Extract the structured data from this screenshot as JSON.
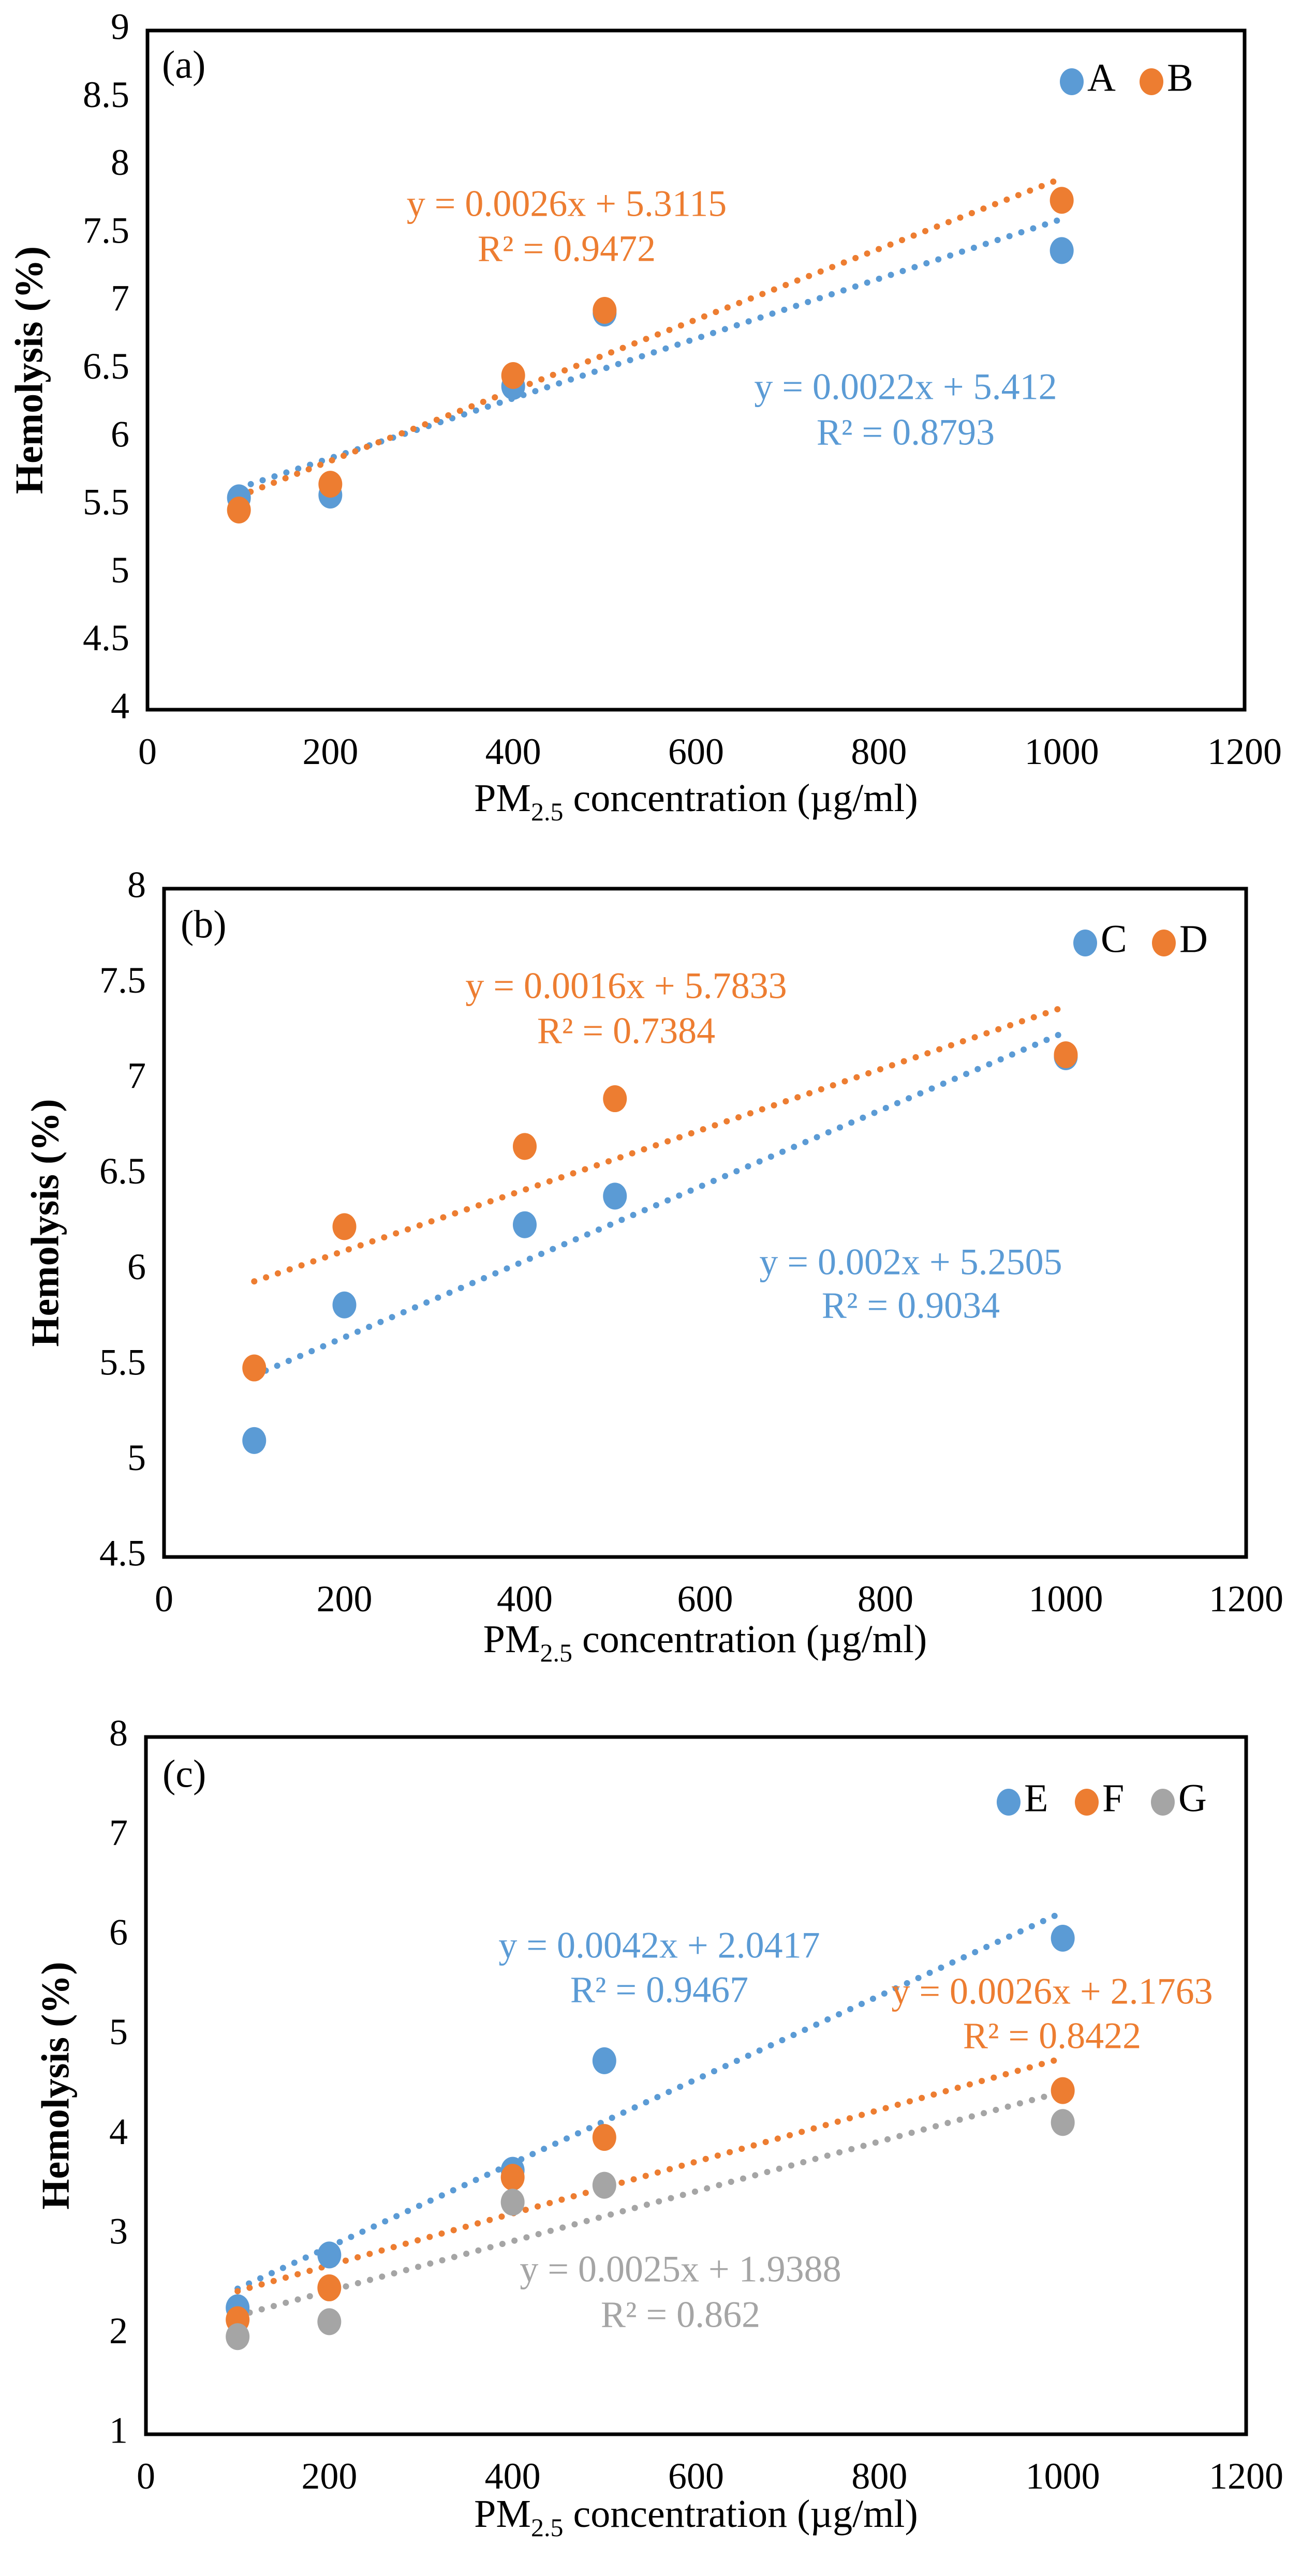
{
  "colors": {
    "blue": "#5B9BD5",
    "orange": "#ED7D31",
    "gray": "#A5A5A5",
    "axis": "#000000"
  },
  "chart_data": [
    {
      "type": "scatter",
      "panel_label": "(a)",
      "xlabel_main": "PM",
      "xlabel_sub": "2.5",
      "xlabel_rest": " concentration (µg/ml)",
      "ylabel": "Hemolysis  (%)",
      "xlim": [
        0,
        1200
      ],
      "ylim": [
        4,
        9
      ],
      "xticks": [
        "0",
        "200",
        "400",
        "600",
        "800",
        "1000",
        "1200"
      ],
      "yticks": [
        "4",
        "4.5",
        "5",
        "5.5",
        "6",
        "6.5",
        "7",
        "7.5",
        "8",
        "8.5",
        "9"
      ],
      "legend_position": "top-right",
      "series": [
        {
          "name": "A",
          "color": "blue",
          "x": [
            100,
            200,
            400,
            500,
            1000
          ],
          "y": [
            5.56,
            5.58,
            6.38,
            6.92,
            7.38
          ],
          "trend": {
            "slope": 0.0022,
            "intercept": 5.412,
            "eq": "y = 0.0022x + 5.412",
            "r2": "R² = 0.8793"
          }
        },
        {
          "name": "B",
          "color": "orange",
          "x": [
            100,
            200,
            400,
            500,
            1000
          ],
          "y": [
            5.47,
            5.66,
            6.46,
            6.94,
            7.75
          ],
          "trend": {
            "slope": 0.0026,
            "intercept": 5.3115,
            "eq": "y = 0.0026x + 5.3115",
            "r2": "R² = 0.9472"
          }
        }
      ]
    },
    {
      "type": "scatter",
      "panel_label": "(b)",
      "xlabel_main": "PM",
      "xlabel_sub": "2.5",
      "xlabel_rest": " concentration (µg/ml)",
      "ylabel": "Hemolysis  (%)",
      "xlim": [
        0,
        1200
      ],
      "ylim": [
        4.5,
        8
      ],
      "xticks": [
        "0",
        "200",
        "400",
        "600",
        "800",
        "1000",
        "1200"
      ],
      "yticks": [
        "4.5",
        "5",
        "5.5",
        "6",
        "6.5",
        "7",
        "7.5",
        "8"
      ],
      "legend_position": "top-right",
      "series": [
        {
          "name": "C",
          "color": "blue",
          "x": [
            100,
            200,
            400,
            500,
            1000
          ],
          "y": [
            5.11,
            5.82,
            6.24,
            6.39,
            7.12
          ],
          "trend": {
            "slope": 0.002,
            "intercept": 5.2505,
            "eq": "y = 0.002x + 5.2505",
            "r2": "R² = 0.9034"
          }
        },
        {
          "name": "D",
          "color": "orange",
          "x": [
            100,
            200,
            400,
            500,
            1000
          ],
          "y": [
            5.49,
            6.23,
            6.65,
            6.9,
            7.13
          ],
          "trend": {
            "slope": 0.0016,
            "intercept": 5.7833,
            "eq": "y = 0.0016x + 5.7833",
            "r2": "R² = 0.7384"
          }
        }
      ]
    },
    {
      "type": "scatter",
      "panel_label": "(c)",
      "xlabel_main": "PM",
      "xlabel_sub": "2.5",
      "xlabel_rest": " concentration (µg/ml)",
      "ylabel": "Hemolysis  (%)",
      "xlim": [
        0,
        1200
      ],
      "ylim": [
        1,
        8
      ],
      "xticks": [
        "0",
        "200",
        "400",
        "600",
        "800",
        "1000",
        "1200"
      ],
      "yticks": [
        "1",
        "2",
        "3",
        "4",
        "5",
        "6",
        "7",
        "8"
      ],
      "legend_position": "top-right",
      "series": [
        {
          "name": "E",
          "color": "blue",
          "x": [
            100,
            200,
            400,
            500,
            1000
          ],
          "y": [
            2.27,
            2.8,
            3.65,
            4.75,
            5.98
          ],
          "trend": {
            "slope": 0.0042,
            "intercept": 2.0417,
            "eq": "y = 0.0042x + 2.0417",
            "r2": "R² = 0.9467"
          }
        },
        {
          "name": "F",
          "color": "orange",
          "x": [
            100,
            200,
            400,
            500,
            1000
          ],
          "y": [
            2.15,
            2.47,
            3.58,
            3.98,
            4.45
          ],
          "trend": {
            "slope": 0.0026,
            "intercept": 2.1763,
            "eq": "y = 0.0026x + 2.1763",
            "r2": "R² = 0.8422"
          }
        },
        {
          "name": "G",
          "color": "gray",
          "x": [
            100,
            200,
            400,
            500,
            1000
          ],
          "y": [
            1.98,
            2.13,
            3.33,
            3.5,
            4.13
          ],
          "trend": {
            "slope": 0.0025,
            "intercept": 1.9388,
            "eq": "y = 0.0025x + 1.9388",
            "r2": "R² = 0.862"
          }
        }
      ]
    }
  ]
}
